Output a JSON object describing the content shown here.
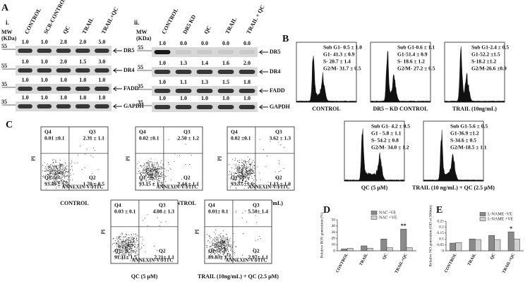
{
  "panel_a": {
    "label": "A",
    "mw": "MW",
    "kda": "(KDa)",
    "blot_i": {
      "label": "i.",
      "lanes": [
        "CONTROL",
        "SCR-CONTROL",
        "QC",
        "TRAIL",
        "TRAIL+QC"
      ],
      "rows": [
        {
          "protein": "DR5",
          "marker": "55",
          "values": [
            "1.0",
            "1.0",
            "2.8",
            "2.0",
            "5.0"
          ]
        },
        {
          "protein": "DR4",
          "marker": "55",
          "values": [
            "1.0",
            "1.0",
            "2.0",
            "1.5",
            "3.0"
          ]
        },
        {
          "protein": "FADD",
          "marker": "35",
          "values": [
            "1.0",
            "1.0",
            "1.0",
            "1.0",
            "1.0"
          ]
        },
        {
          "protein": "GAPDH",
          "marker": "35",
          "values": [
            "1.0",
            "1.0",
            "1.0",
            "1.0",
            "1.0"
          ]
        }
      ]
    },
    "blot_ii": {
      "label": "ii.",
      "lanes": [
        "CONTROL",
        "DR5 KD",
        "QC",
        "TRAIL",
        "TRAIL + QC"
      ],
      "rows": [
        {
          "protein": "DR5",
          "marker": "55",
          "values": [
            "1.0",
            "0.0",
            "0.0",
            "0.0",
            "0.0"
          ]
        },
        {
          "protein": "DR4",
          "marker": "55",
          "values": [
            "1.0",
            "1.3",
            "1.4",
            "1.6",
            "2.0"
          ]
        },
        {
          "protein": "FADD",
          "marker": "35",
          "values": [
            "1.0",
            "1.1",
            "1.3",
            "1.5",
            "1.8"
          ]
        },
        {
          "protein": "GAPDH",
          "marker": "35",
          "values": [
            "1.0",
            "1.0",
            "1.0",
            "1.0",
            "1.0"
          ]
        }
      ]
    }
  },
  "panel_b": {
    "label": "B",
    "histograms": [
      {
        "caption": "CONTROL",
        "stats": [
          "Sub G1- 0.5 ± 1.0",
          "G1- 41.3 ± 0.9",
          "S- 20.7 ± 1.4",
          "G2/M- 31.7 ± 0.5"
        ]
      },
      {
        "caption": "DR5 – KD CONTROL",
        "stats": [
          "Sub G1-0.6 ± 1.1",
          "G1-51.4 ± 0.9",
          "S- 18.6 ± 1.2",
          "G2/M- 27.2 ± 0.5"
        ]
      },
      {
        "caption": "TRAIL (10ng/mL)",
        "stats": [
          "Sub G1-2.4 ± 0.5",
          "G1-52.2 ±1.5",
          "S-18.2 ±1.2",
          "G2/M-26.6 ±0.9"
        ]
      },
      {
        "caption": "QC (5 µM)",
        "stats": [
          "Sub G1- 4.2 ± 0.5",
          "G1 - 5.8 ± 1.1",
          "S- 54.2 ± 0.8",
          "G2/M- 34.0 ± 1.2"
        ]
      },
      {
        "caption": "TRAIL (10 ng/mL) + QC (2.5 µM)",
        "stats": [
          "Sub G1-5.6 ± 0.5",
          "G1-36.9 ±1.2",
          "S-34.6 ± 0.5",
          "G2/M-18.5 ± 1.1"
        ]
      }
    ]
  },
  "panel_c": {
    "label": "C",
    "x_label": "ANNEXIN-V/FITC",
    "y_label": "PI",
    "plots": [
      {
        "caption": "CONTROL",
        "quadrants": [
          {
            "name": "Q4",
            "value": "0.01 ±0.1"
          },
          {
            "name": "Q3",
            "value": "2.31 ± 1.1"
          },
          {
            "name": "Q1",
            "value": "93.49 ± 1.5"
          },
          {
            "name": "Q2",
            "value": "1.70 ± 0.5"
          }
        ]
      },
      {
        "caption": "DR5 - KD CONTROL",
        "quadrants": [
          {
            "name": "Q4",
            "value": "0.02 ±0.1"
          },
          {
            "name": "Q3",
            "value": "2.50 ± 1.2"
          },
          {
            "name": "Q1",
            "value": "93.15 ± 1.5"
          },
          {
            "name": "Q2",
            "value": "2.44 ± 1.1"
          }
        ]
      },
      {
        "caption": "TRAIL (10ng/mL)",
        "quadrants": [
          {
            "name": "Q4",
            "value": "0.02 ±0.1"
          },
          {
            "name": "Q3",
            "value": "3.62 ± 1.3"
          },
          {
            "name": "Q1",
            "value": "93.37 ±1.6"
          },
          {
            "name": "Q2",
            "value": "1.13 ± 1.0"
          }
        ]
      },
      {
        "caption": "QC (5 µM)",
        "quadrants": [
          {
            "name": "Q4",
            "value": "0.03 ± 0.1"
          },
          {
            "name": "Q3",
            "value": "4.08 ± 1.3"
          },
          {
            "name": "Q1",
            "value": "91.11± 1.5"
          },
          {
            "name": "Q2",
            "value": "2.21± 1.1"
          }
        ]
      },
      {
        "caption": "TRAIL (10ng/mL) + QC (2.5 µM)",
        "quadrants": [
          {
            "name": "Q4",
            "value": "0.01± 0.1"
          },
          {
            "name": "Q3",
            "value": "5.50± 1.4"
          },
          {
            "name": "Q1",
            "value": "89.83± 1.5"
          },
          {
            "name": "Q2",
            "value": "2.97± 1.1"
          }
        ]
      }
    ]
  },
  "chart_data": [
    {
      "type": "bar",
      "panel_label": "D",
      "ylabel": "Relative ROS generation (%)",
      "categories": [
        "CONTROL",
        "TRAIL",
        "QC",
        "TRAIL+QC"
      ],
      "series": [
        {
          "name": "NAC -VE",
          "color": "#8a8a8a",
          "values": [
            3,
            8,
            19,
            35
          ]
        },
        {
          "name": "NAC +VE",
          "color": "#d0d0d0",
          "values": [
            4,
            4,
            5,
            5
          ]
        }
      ],
      "ylim": [
        0,
        50
      ],
      "yticks": [
        0,
        10,
        20,
        30,
        40,
        50
      ],
      "annotation": "**"
    },
    {
      "type": "bar",
      "panel_label": "E",
      "ylabel": "Relative NO generation (OD at 560nm)",
      "categories": [
        "CONTROL",
        "TRAIL",
        "QC",
        "TRAIL+QC"
      ],
      "series": [
        {
          "name": "L-NAME -VE",
          "color": "#8a8a8a",
          "values": [
            0.065,
            0.1,
            0.13,
            0.16
          ]
        },
        {
          "name": "L-NAME +VE",
          "color": "#d0d0d0",
          "values": [
            0.07,
            0.095,
            0.095,
            0.1
          ]
        }
      ],
      "ylim": [
        0,
        0.25
      ],
      "yticks": [
        0,
        0.05,
        0.1,
        0.15,
        0.2,
        0.25
      ],
      "annotation": "*"
    }
  ]
}
